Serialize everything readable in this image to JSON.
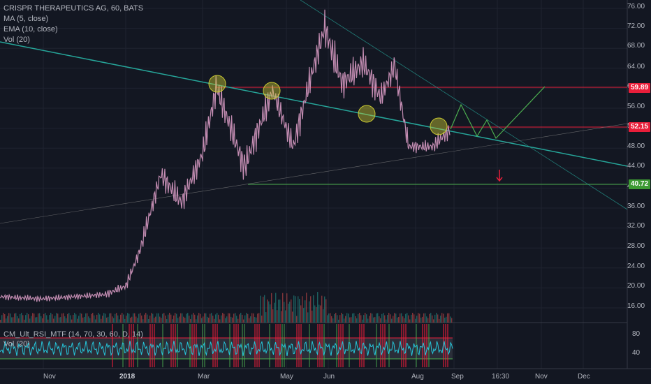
{
  "legend": {
    "title": "CRISPR THERAPEUTICS AG, 60, BATS",
    "ma": "MA (5, close)",
    "ema": "EMA (10, close)",
    "vol": "Vol (20)"
  },
  "rsi_legend": {
    "title": "CM_Ult_RSI_MTF (14, 70, 30, 60, D, 14)",
    "vol": "Vol (20)"
  },
  "price_axis": [
    "76.00",
    "72.00",
    "68.00",
    "64.00",
    "60.00",
    "56.00",
    "52.00",
    "48.00",
    "44.00",
    "40.00",
    "36.00",
    "32.00",
    "28.00",
    "24.00",
    "20.00",
    "16.00"
  ],
  "rsi_axis": [
    "80",
    "40"
  ],
  "price_tags": {
    "upper": {
      "value": "59.89",
      "color": "#e91e3a"
    },
    "current": {
      "value": "52.15",
      "color": "#e91e3a"
    },
    "support": {
      "value": "40.72",
      "color": "#3d9a33"
    }
  },
  "time_axis": [
    "Nov",
    "2018",
    "Mar",
    "May",
    "Jun",
    "Aug",
    "Sep",
    "16:30",
    "Nov",
    "Dec"
  ],
  "colors": {
    "background": "#131722",
    "trendline": "#26a69a",
    "horizontal_red": "#e91e3a",
    "horizontal_green": "#4caf50",
    "projection": "#4caf50",
    "circle_fill": "#c8c832",
    "price_line": "#c48db3",
    "rsi_line": "#26c6da"
  }
}
